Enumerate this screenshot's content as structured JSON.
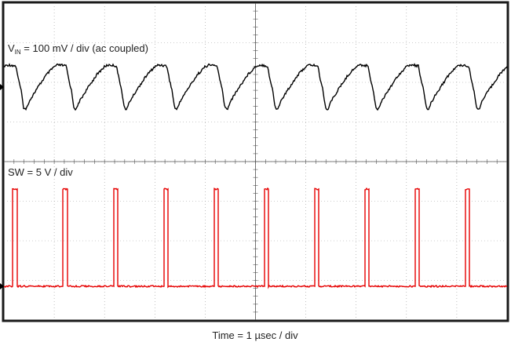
{
  "chart_data": {
    "type": "line",
    "title": "",
    "xlabel": "Time = 1 µsec / div",
    "ylabel": "",
    "grid": true,
    "divisions": {
      "x": 10,
      "y": 8
    },
    "xlim": [
      0,
      10
    ],
    "x_unit": "µs",
    "series": [
      {
        "name": "V",
        "name_subscript": "IN",
        "label_suffix": " = 100 mV / div (ac coupled)",
        "color": "#000000",
        "coupling": "ac",
        "scale_per_div": "100 mV",
        "period_us": 1.0,
        "min_mV": -50,
        "max_mV": 40,
        "waveform": [
          {
            "t": 0.0,
            "mV": 40
          },
          {
            "t": 0.1,
            "mV": 38
          },
          {
            "t": 0.15,
            "mV": 10
          },
          {
            "t": 0.2,
            "mV": -10
          },
          {
            "t": 0.25,
            "mV": -45
          },
          {
            "t": 0.3,
            "mV": -50
          },
          {
            "t": 0.35,
            "mV": -35
          },
          {
            "t": 0.5,
            "mV": -10
          },
          {
            "t": 0.7,
            "mV": 20
          },
          {
            "t": 0.85,
            "mV": 36
          },
          {
            "t": 0.92,
            "mV": 40
          },
          {
            "t": 1.0,
            "mV": 40
          }
        ]
      },
      {
        "name": "SW",
        "label": "SW = 5 V / div",
        "color": "#e60000",
        "scale_per_div": "5 V",
        "period_us": 1.0,
        "pulse_start_us": 0.15,
        "pulse_width_us": 0.08,
        "high_V": 25,
        "low_V": 0
      }
    ]
  }
}
